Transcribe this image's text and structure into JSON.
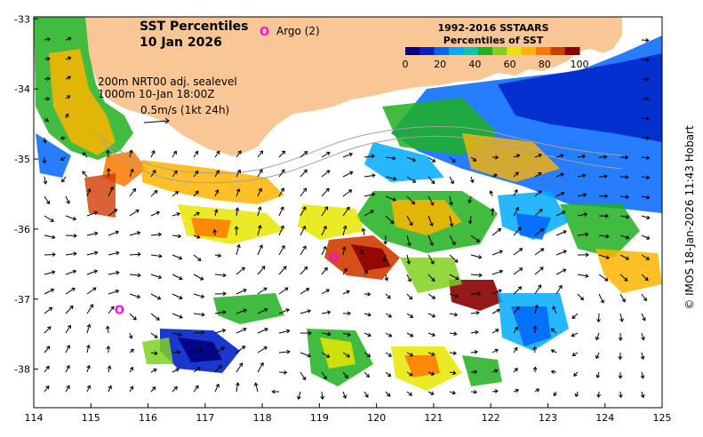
{
  "map": {
    "title_line1": "SST Percentiles",
    "title_line2": "10 Jan 2026",
    "argo_symbol": "O",
    "argo_label": "Argo (2)",
    "argo_color": "#ff00ff",
    "info_line1": "200m  NRT00 adj. sealevel",
    "info_line2": "1000m 10-Jan 18:00Z",
    "scale_label": "0.5m/s (1kt 24h)",
    "credit": "© IMOS 18-Jan-2026 11:43 Hobart",
    "land_color": "#f9c796",
    "lon_ticks": [
      "114",
      "115",
      "116",
      "117",
      "118",
      "119",
      "120",
      "121",
      "122",
      "123",
      "124",
      "125"
    ],
    "lat_ticks": [
      "-33",
      "-34",
      "-35",
      "-36",
      "-37",
      "-38"
    ]
  },
  "legend": {
    "title_line1": "1992-2016 SSTAARS",
    "title_line2": "Percentiles of SST",
    "ticks": [
      "0",
      "20",
      "40",
      "60",
      "80",
      "100"
    ],
    "colors": [
      "#000080",
      "#0022c8",
      "#0066ff",
      "#00aaff",
      "#00c8b4",
      "#20b020",
      "#80d020",
      "#e6e600",
      "#ffb400",
      "#ff7800",
      "#d23c00",
      "#8b0000"
    ]
  },
  "argo_floats": [
    {
      "lon": 115.5,
      "lat": -37.15
    },
    {
      "lon": 119.25,
      "lat": -36.4
    }
  ]
}
